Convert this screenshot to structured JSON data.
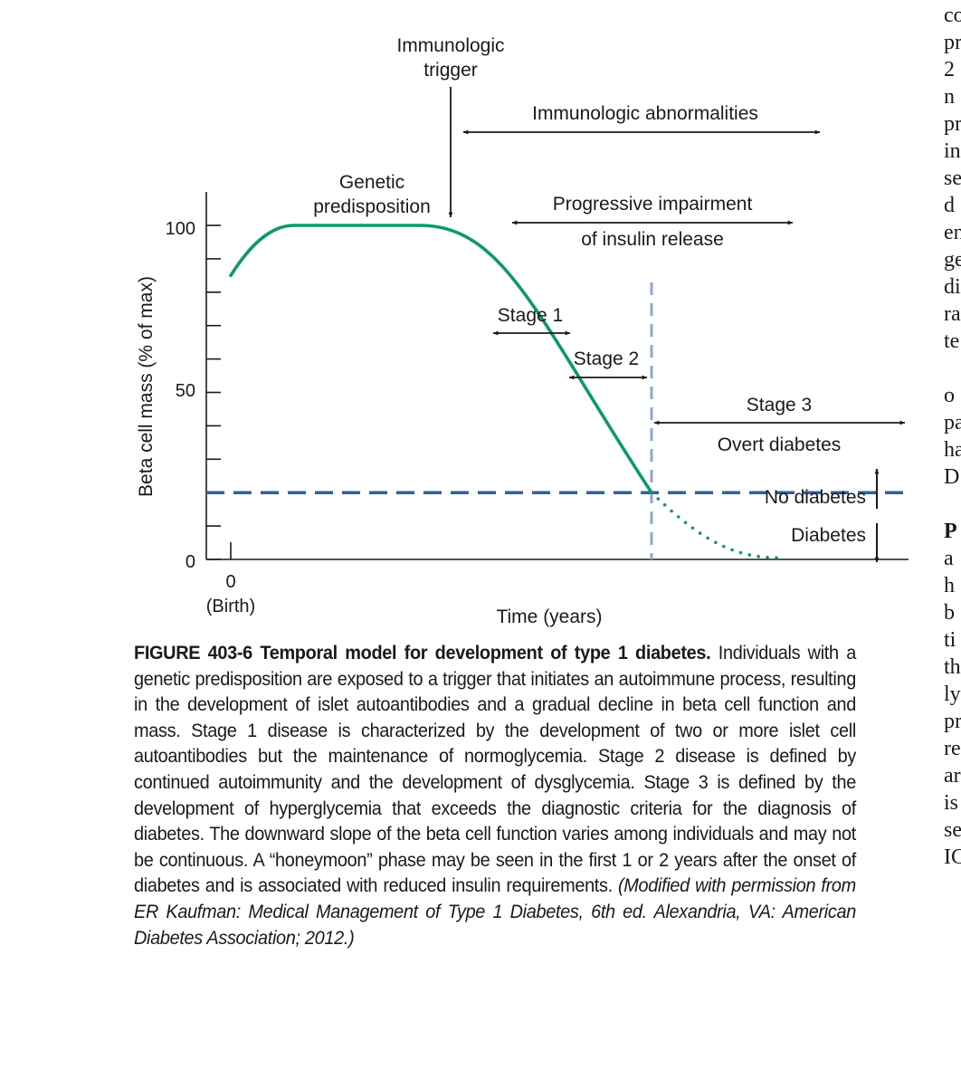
{
  "figure": {
    "annotations": {
      "trigger": [
        "Immunologic",
        "trigger"
      ],
      "abnormalities": "Immunologic abnormalities",
      "genetic": [
        "Genetic",
        "predisposition"
      ],
      "impairment": [
        "Progressive impairment",
        "of insulin release"
      ],
      "stage1": "Stage 1",
      "stage2": "Stage 2",
      "stage3": "Stage 3",
      "overt": "Overt diabetes",
      "no_diabetes": "No diabetes",
      "diabetes": "Diabetes"
    },
    "colors": {
      "curve": "#0c9a6a",
      "threshold": "#2f5f9e",
      "onset_line": "#8ea7cf",
      "axis": "#1a1a1a"
    }
  },
  "chart_data": {
    "type": "line",
    "xlabel": "Time (years)",
    "ylabel": "Beta cell mass (% of max)",
    "x_ticks": [
      {
        "label": "0",
        "sublabel": "(Birth)"
      }
    ],
    "y_ticks": [
      0,
      50,
      100
    ],
    "ylim": [
      0,
      100
    ],
    "grid": false,
    "series": [
      {
        "style": "solid",
        "points": [
          [
            0,
            85
          ],
          [
            1.5,
            100
          ],
          [
            4.5,
            100
          ],
          [
            10,
            20
          ]
        ]
      },
      {
        "style": "dotted",
        "points": [
          [
            10,
            20
          ],
          [
            13,
            0.5
          ]
        ]
      }
    ],
    "threshold_y": 20,
    "onset_x": 10
  },
  "caption": {
    "label": "FIGURE 403-6 Temporal model for development of type 1 diabetes.",
    "text": " Individuals with a genetic predisposition are exposed to a trigger that initiates an autoimmune process, resulting in the development of islet autoantibodies and a gradual decline in beta cell function and mass. Stage 1 disease is characterized by the development of two or more islet cell autoantibodies but the maintenance of normoglycemia. Stage 2 disease is defined by continued autoimmunity and the development of dysglycemia. Stage 3 is defined by the development of hyperglycemia that exceeds the diagnostic criteria for the diagnosis of diabetes. The downward slope of the beta cell function varies among individuals and may not be continuous. A “honeymoon” phase may be seen in the first 1 or 2 years after the onset of diabetes and is associated with reduced insulin requirements. ",
    "credit": "(Modified with permission from ER Kaufman: Medical Management of Type 1 Diabetes, 6th ed. Alexandria, VA: American Diabetes Association; 2012.)"
  },
  "side_column": [
    "co",
    "pr",
    "2",
    "n",
    "pr",
    "in",
    "se",
    "d",
    "en",
    "ge",
    "di",
    "ra",
    "te",
    "",
    "o",
    "pa",
    "ha",
    "D",
    "",
    "P",
    "a",
    "h",
    "b",
    "ti",
    "th",
    "ly",
    "pr",
    "re",
    "ar",
    "is",
    "se",
    "IC"
  ]
}
